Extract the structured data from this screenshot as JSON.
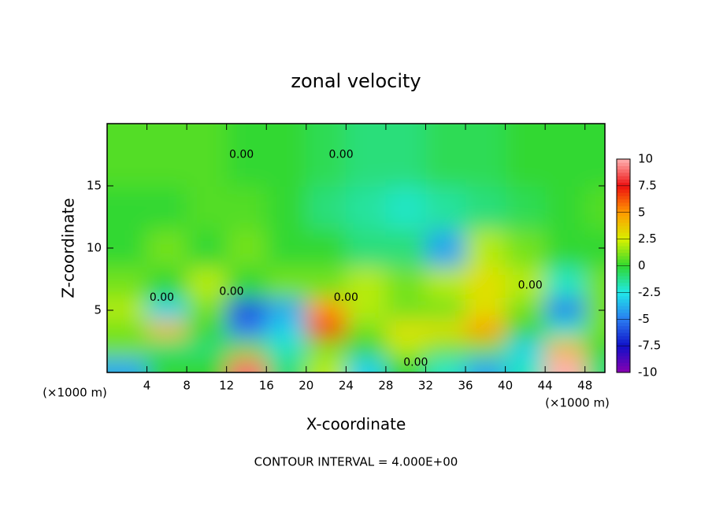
{
  "chart_data": {
    "type": "contour",
    "title": "zonal velocity",
    "x_label": "X-coordinate",
    "y_label": "Z-coordinate",
    "x_unit": "(×1000 m)",
    "footer": "CONTOUR INTERVAL = 4.000E+00",
    "xlim": [
      0,
      50
    ],
    "ylim": [
      0,
      20
    ],
    "xticks": [
      4,
      8,
      12,
      16,
      20,
      24,
      28,
      32,
      36,
      40,
      44,
      48
    ],
    "yticks": [
      5,
      10,
      15
    ],
    "x": [
      2,
      6,
      10,
      14,
      18,
      22,
      26,
      30,
      34,
      38,
      42,
      46,
      50
    ],
    "z": [
      0.5,
      2,
      3.5,
      5,
      7,
      10,
      13,
      17
    ],
    "values": [
      [
        -4,
        0,
        0,
        9,
        -1,
        2,
        -3,
        0,
        -2,
        -4,
        -2,
        10,
        -1
      ],
      [
        1,
        -1,
        -1,
        1,
        -2,
        1,
        0,
        2,
        1,
        1,
        -3,
        4,
        0
      ],
      [
        1,
        4,
        0,
        -5,
        -3,
        7,
        1,
        3,
        3,
        5,
        0,
        -2,
        1
      ],
      [
        2,
        -3,
        1,
        -6,
        -4,
        5,
        2,
        1,
        1,
        3,
        1,
        -5,
        1
      ],
      [
        1,
        0,
        2,
        0,
        1,
        1,
        2,
        1,
        2,
        3,
        2,
        -2,
        1
      ],
      [
        0,
        1,
        0,
        1,
        0,
        0,
        -1,
        -1,
        -4,
        2,
        1,
        0,
        0
      ],
      [
        0,
        0,
        0.5,
        0.5,
        0,
        -1,
        -1.5,
        -2,
        -1.5,
        -1,
        -0.5,
        0,
        0.5
      ],
      [
        0.5,
        0.5,
        0.5,
        0,
        0,
        -0.5,
        -1,
        -1,
        -0.5,
        -0.5,
        0,
        0,
        0
      ]
    ],
    "colorbar_lim": [
      -10,
      10
    ],
    "colorbar_ticks": [
      10,
      7.5,
      5,
      2.5,
      0,
      -2.5,
      -5,
      -7.5,
      -10
    ],
    "colormap": [
      "#8a00b0",
      "#1010c8",
      "#2a7cf0",
      "#20e8e8",
      "#30d830",
      "#d8f000",
      "#ff9a00",
      "#ee1010",
      "#ffb0b0"
    ],
    "contour_labels": [
      {
        "text": "0.00",
        "x": 13.5,
        "z": 17.5
      },
      {
        "text": "0.00",
        "x": 23.5,
        "z": 17.5
      },
      {
        "text": "0.00",
        "x": 5.5,
        "z": 6
      },
      {
        "text": "0.00",
        "x": 12.5,
        "z": 6.5
      },
      {
        "text": "0.00",
        "x": 24,
        "z": 6
      },
      {
        "text": "0.00",
        "x": 31,
        "z": 0.8
      },
      {
        "text": "0.00",
        "x": 42.5,
        "z": 7
      }
    ]
  }
}
